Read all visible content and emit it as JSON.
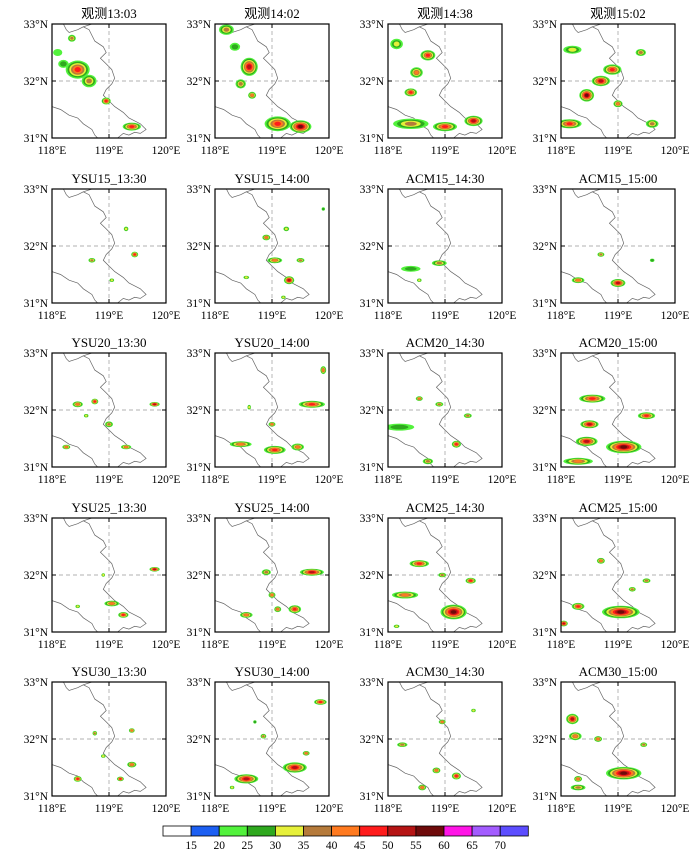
{
  "chart_data": {
    "type": "radar-reflectivity-panels",
    "rows": 5,
    "cols": 4,
    "panels": [
      {
        "title": "观测13:03",
        "cells": [
          [
            32.75,
            118.35,
            0.06,
            0.05,
            35
          ],
          [
            32.2,
            118.45,
            0.2,
            0.15,
            45
          ],
          [
            32.3,
            118.2,
            0.08,
            0.06,
            25
          ],
          [
            32.0,
            118.65,
            0.12,
            0.1,
            35
          ],
          [
            31.65,
            118.95,
            0.07,
            0.05,
            45
          ],
          [
            31.2,
            119.4,
            0.15,
            0.06,
            45
          ],
          [
            32.5,
            118.1,
            0.07,
            0.05,
            20
          ]
        ]
      },
      {
        "title": "观测14:02",
        "cells": [
          [
            32.9,
            118.2,
            0.12,
            0.08,
            35
          ],
          [
            32.25,
            118.6,
            0.14,
            0.15,
            50
          ],
          [
            31.95,
            118.45,
            0.08,
            0.07,
            35
          ],
          [
            31.75,
            118.65,
            0.06,
            0.05,
            40
          ],
          [
            31.25,
            119.1,
            0.22,
            0.12,
            45
          ],
          [
            31.2,
            119.5,
            0.18,
            0.1,
            55
          ],
          [
            32.6,
            118.35,
            0.08,
            0.06,
            25
          ]
        ]
      },
      {
        "title": "观测14:38",
        "cells": [
          [
            32.65,
            118.15,
            0.1,
            0.08,
            30
          ],
          [
            32.45,
            118.7,
            0.12,
            0.08,
            45
          ],
          [
            32.15,
            118.5,
            0.1,
            0.08,
            40
          ],
          [
            31.8,
            118.4,
            0.1,
            0.06,
            45
          ],
          [
            31.25,
            118.4,
            0.3,
            0.08,
            35
          ],
          [
            31.2,
            119.0,
            0.2,
            0.07,
            45
          ],
          [
            31.3,
            119.5,
            0.15,
            0.08,
            50
          ]
        ]
      },
      {
        "title": "观测15:02",
        "cells": [
          [
            32.55,
            118.2,
            0.15,
            0.06,
            30
          ],
          [
            32.5,
            119.4,
            0.08,
            0.05,
            35
          ],
          [
            32.2,
            118.9,
            0.15,
            0.08,
            45
          ],
          [
            32.0,
            118.7,
            0.15,
            0.08,
            50
          ],
          [
            31.75,
            118.45,
            0.12,
            0.1,
            55
          ],
          [
            31.6,
            119.0,
            0.07,
            0.05,
            40
          ],
          [
            31.25,
            118.15,
            0.2,
            0.07,
            45
          ],
          [
            31.25,
            119.6,
            0.1,
            0.06,
            35
          ]
        ]
      },
      {
        "title": "YSU15_13:30",
        "cells": [
          [
            32.3,
            119.3,
            0.03,
            0.03,
            30
          ],
          [
            31.85,
            119.45,
            0.05,
            0.04,
            45
          ],
          [
            31.75,
            118.7,
            0.05,
            0.03,
            35
          ],
          [
            31.4,
            119.05,
            0.03,
            0.02,
            30
          ]
        ]
      },
      {
        "title": "YSU15_14:00",
        "cells": [
          [
            32.15,
            118.9,
            0.06,
            0.04,
            40
          ],
          [
            32.3,
            119.25,
            0.04,
            0.03,
            30
          ],
          [
            31.75,
            119.05,
            0.12,
            0.04,
            40
          ],
          [
            31.75,
            119.5,
            0.06,
            0.03,
            35
          ],
          [
            31.45,
            118.55,
            0.04,
            0.02,
            30
          ],
          [
            31.4,
            119.3,
            0.08,
            0.06,
            50
          ],
          [
            32.65,
            119.9,
            0.02,
            0.02,
            25
          ],
          [
            31.1,
            119.2,
            0.03,
            0.02,
            30
          ]
        ]
      },
      {
        "title": "ACM15_14:30",
        "cells": [
          [
            31.6,
            118.4,
            0.16,
            0.04,
            25
          ],
          [
            31.7,
            118.9,
            0.12,
            0.04,
            35
          ],
          [
            31.4,
            118.55,
            0.03,
            0.02,
            30
          ]
        ]
      },
      {
        "title": "ACM15_15:00",
        "cells": [
          [
            31.85,
            118.7,
            0.05,
            0.03,
            35
          ],
          [
            31.4,
            118.3,
            0.1,
            0.04,
            40
          ],
          [
            31.35,
            119.0,
            0.12,
            0.06,
            50
          ],
          [
            31.75,
            119.6,
            0.03,
            0.02,
            25
          ]
        ]
      },
      {
        "title": "YSU20_13:30",
        "cells": [
          [
            32.1,
            118.45,
            0.08,
            0.04,
            40
          ],
          [
            32.15,
            118.75,
            0.05,
            0.04,
            45
          ],
          [
            32.1,
            119.8,
            0.08,
            0.03,
            50
          ],
          [
            31.75,
            119.0,
            0.06,
            0.04,
            35
          ],
          [
            31.35,
            118.25,
            0.06,
            0.03,
            40
          ],
          [
            31.35,
            119.3,
            0.08,
            0.03,
            40
          ],
          [
            31.9,
            118.6,
            0.03,
            0.02,
            30
          ]
        ]
      },
      {
        "title": "YSU20_14:00",
        "cells": [
          [
            32.7,
            119.9,
            0.04,
            0.06,
            40
          ],
          [
            32.1,
            119.7,
            0.22,
            0.05,
            45
          ],
          [
            31.75,
            119.0,
            0.05,
            0.03,
            40
          ],
          [
            31.4,
            118.45,
            0.18,
            0.04,
            40
          ],
          [
            31.3,
            119.05,
            0.18,
            0.06,
            45
          ],
          [
            31.35,
            119.45,
            0.1,
            0.05,
            40
          ],
          [
            32.05,
            118.6,
            0.02,
            0.03,
            30
          ]
        ]
      },
      {
        "title": "ACM20_14:30",
        "cells": [
          [
            31.7,
            118.2,
            0.25,
            0.05,
            25
          ],
          [
            32.2,
            118.55,
            0.05,
            0.03,
            40
          ],
          [
            32.1,
            118.9,
            0.06,
            0.03,
            35
          ],
          [
            31.9,
            119.4,
            0.06,
            0.03,
            35
          ],
          [
            31.4,
            119.2,
            0.07,
            0.05,
            45
          ],
          [
            31.1,
            118.7,
            0.08,
            0.04,
            35
          ]
        ]
      },
      {
        "title": "ACM20_15:00",
        "cells": [
          [
            32.2,
            118.55,
            0.22,
            0.06,
            45
          ],
          [
            31.9,
            119.5,
            0.14,
            0.05,
            45
          ],
          [
            31.75,
            118.5,
            0.15,
            0.06,
            50
          ],
          [
            31.45,
            118.45,
            0.18,
            0.07,
            50
          ],
          [
            31.35,
            119.1,
            0.3,
            0.1,
            55
          ],
          [
            31.1,
            118.3,
            0.25,
            0.05,
            40
          ]
        ]
      },
      {
        "title": "YSU25_13:30",
        "cells": [
          [
            32.1,
            119.8,
            0.08,
            0.03,
            50
          ],
          [
            31.5,
            119.05,
            0.12,
            0.04,
            40
          ],
          [
            31.3,
            119.25,
            0.08,
            0.04,
            45
          ],
          [
            31.45,
            118.45,
            0.03,
            0.02,
            30
          ],
          [
            32.0,
            118.9,
            0.02,
            0.02,
            30
          ]
        ]
      },
      {
        "title": "YSU25_14:00",
        "cells": [
          [
            32.05,
            118.9,
            0.07,
            0.04,
            35
          ],
          [
            32.05,
            119.7,
            0.2,
            0.05,
            50
          ],
          [
            31.65,
            119.0,
            0.05,
            0.04,
            40
          ],
          [
            31.4,
            119.4,
            0.1,
            0.06,
            45
          ],
          [
            31.3,
            118.55,
            0.1,
            0.04,
            40
          ],
          [
            31.4,
            119.1,
            0.05,
            0.04,
            40
          ]
        ]
      },
      {
        "title": "ACM25_14:30",
        "cells": [
          [
            32.2,
            118.55,
            0.16,
            0.05,
            45
          ],
          [
            32.0,
            118.95,
            0.06,
            0.03,
            35
          ],
          [
            31.9,
            119.45,
            0.08,
            0.04,
            45
          ],
          [
            31.65,
            118.3,
            0.22,
            0.05,
            40
          ],
          [
            31.35,
            119.15,
            0.22,
            0.12,
            55
          ],
          [
            31.1,
            118.15,
            0.04,
            0.02,
            30
          ]
        ]
      },
      {
        "title": "ACM25_15:00",
        "cells": [
          [
            32.25,
            118.7,
            0.06,
            0.04,
            40
          ],
          [
            31.9,
            119.5,
            0.06,
            0.03,
            35
          ],
          [
            31.75,
            119.25,
            0.05,
            0.03,
            35
          ],
          [
            31.45,
            118.3,
            0.1,
            0.05,
            45
          ],
          [
            31.35,
            119.05,
            0.32,
            0.1,
            55
          ],
          [
            31.15,
            118.05,
            0.06,
            0.04,
            50
          ]
        ]
      },
      {
        "title": "YSU30_13:30",
        "cells": [
          [
            32.15,
            119.4,
            0.04,
            0.03,
            40
          ],
          [
            32.1,
            118.75,
            0.03,
            0.03,
            35
          ],
          [
            31.55,
            119.4,
            0.07,
            0.04,
            40
          ],
          [
            31.3,
            119.2,
            0.05,
            0.03,
            45
          ],
          [
            31.3,
            118.45,
            0.06,
            0.04,
            45
          ],
          [
            31.7,
            118.9,
            0.03,
            0.02,
            30
          ]
        ]
      },
      {
        "title": "YSU30_14:00",
        "cells": [
          [
            32.65,
            119.85,
            0.1,
            0.04,
            45
          ],
          [
            32.05,
            118.85,
            0.04,
            0.03,
            35
          ],
          [
            31.5,
            119.4,
            0.2,
            0.08,
            50
          ],
          [
            31.3,
            118.55,
            0.2,
            0.07,
            50
          ],
          [
            31.75,
            119.6,
            0.05,
            0.03,
            40
          ],
          [
            31.15,
            118.3,
            0.03,
            0.02,
            30
          ],
          [
            32.3,
            118.7,
            0.02,
            0.02,
            25
          ]
        ]
      },
      {
        "title": "ACM30_14:30",
        "cells": [
          [
            32.3,
            118.95,
            0.05,
            0.03,
            40
          ],
          [
            31.9,
            118.25,
            0.08,
            0.03,
            35
          ],
          [
            31.45,
            118.85,
            0.06,
            0.04,
            40
          ],
          [
            31.35,
            119.2,
            0.07,
            0.05,
            45
          ],
          [
            31.15,
            118.6,
            0.06,
            0.04,
            40
          ],
          [
            32.5,
            119.5,
            0.03,
            0.02,
            30
          ]
        ]
      },
      {
        "title": "ACM30_15:00",
        "cells": [
          [
            32.35,
            118.2,
            0.1,
            0.08,
            50
          ],
          [
            32.05,
            118.25,
            0.1,
            0.06,
            40
          ],
          [
            32.0,
            118.65,
            0.06,
            0.04,
            40
          ],
          [
            31.9,
            119.45,
            0.05,
            0.03,
            35
          ],
          [
            31.4,
            119.1,
            0.3,
            0.1,
            55
          ],
          [
            31.3,
            118.3,
            0.06,
            0.04,
            40
          ],
          [
            31.15,
            118.3,
            0.12,
            0.04,
            35
          ]
        ]
      }
    ],
    "x_ticks": [
      118,
      119,
      120
    ],
    "x_tick_labels": [
      "118°E",
      "119°E",
      "120°E"
    ],
    "y_ticks": [
      31,
      32,
      33
    ],
    "y_tick_labels": [
      "31°N",
      "32°N",
      "33°N"
    ],
    "xlim": [
      118,
      120
    ],
    "ylim": [
      31,
      33
    ],
    "reference_lines": {
      "lon": 119,
      "lat": 32
    },
    "colorbar": {
      "levels": [
        15,
        20,
        25,
        30,
        35,
        40,
        45,
        50,
        55,
        60,
        65,
        70
      ],
      "colors": [
        "#ffffff",
        "#1c5ff2",
        "#52f23c",
        "#2ea81e",
        "#e6f03a",
        "#b57a3a",
        "#ff7a1f",
        "#ff1c1c",
        "#b51414",
        "#6e0a0a",
        "#ff14e6",
        "#a35cff",
        "#5c4dff"
      ]
    }
  }
}
